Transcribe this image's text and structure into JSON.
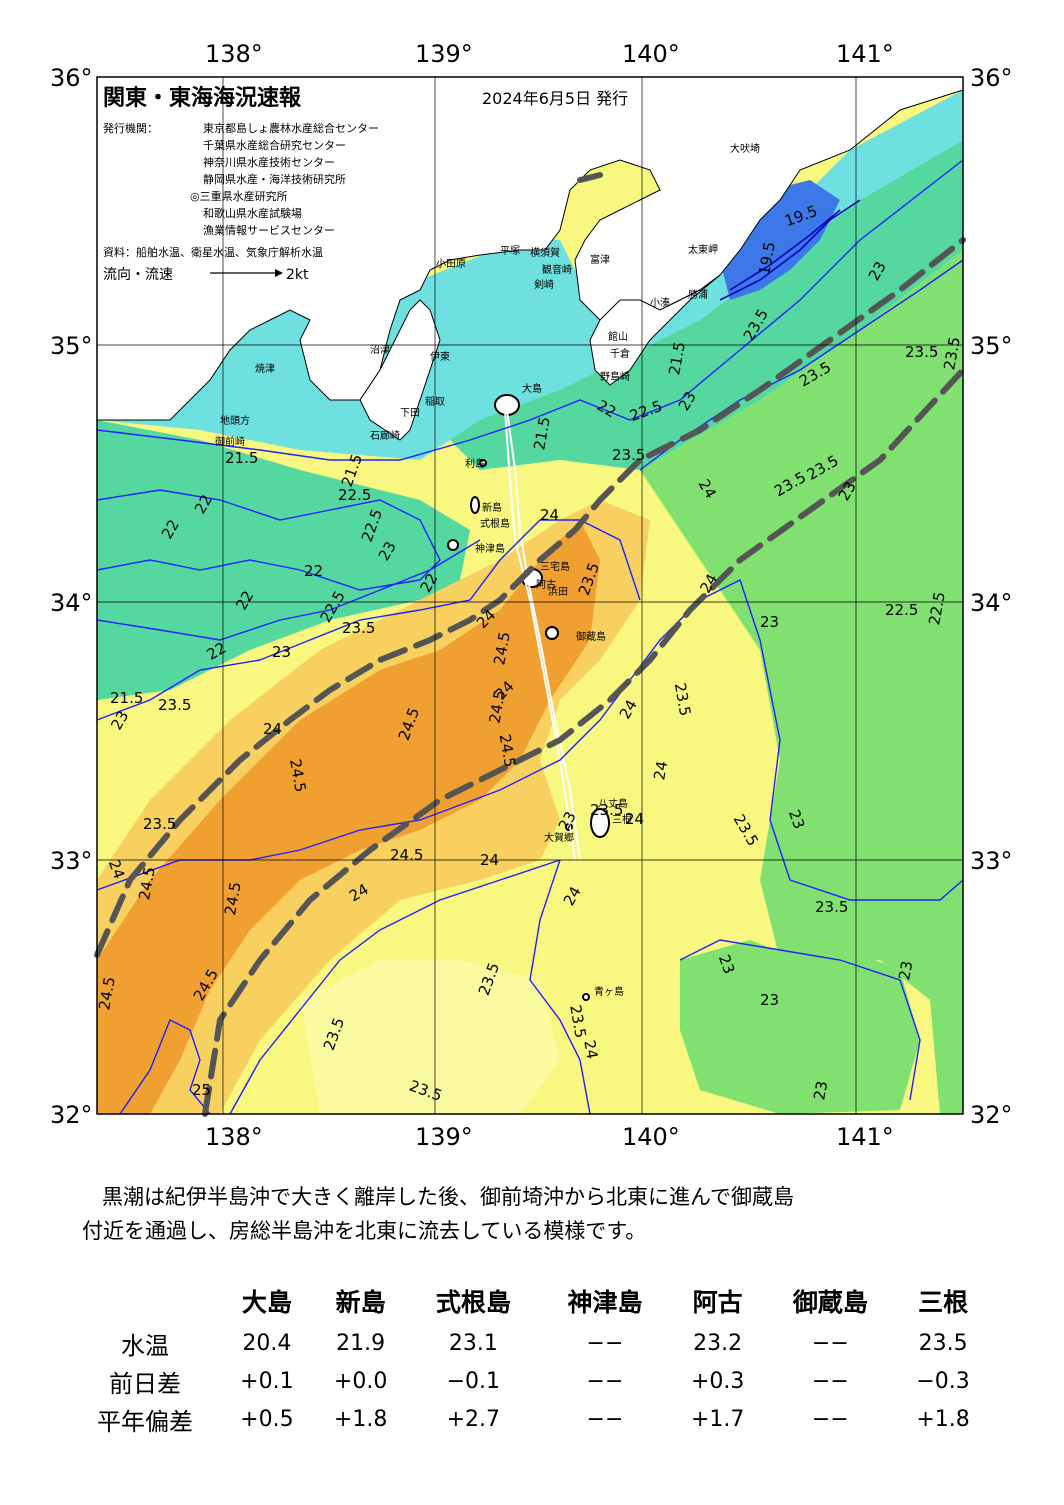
{
  "header": {
    "title": "関東・東海海況速報",
    "date": "2024年6月5日 発行",
    "issuer_label": "発行機関：",
    "issuers": [
      "東京都島しょ農林水産総合センター",
      "千葉県水産総合研究センター",
      "神奈川県水産技術センター",
      "静岡県水産・海洋技術研究所",
      "◎三重県水産研究所",
      "和歌山県水産試験場",
      "漁業情報サービスセンター"
    ],
    "source": "資料：船舶水温、衛星水温、気象庁解析水温",
    "flow_legend_label": "流向・流速",
    "flow_legend_value": "2kt"
  },
  "map": {
    "lon_labels": [
      "138°",
      "139°",
      "140°",
      "141°"
    ],
    "lat_labels": [
      "36°",
      "35°",
      "34°",
      "33°",
      "32°"
    ],
    "colors": {
      "water_19": "#3c78e8",
      "water_21": "#6fe0e0",
      "water_22": "#55d8a0",
      "water_23": "#80e070",
      "water_235": "#f8f880",
      "water_24": "#f8d060",
      "water_245": "#f0a030",
      "land": "#ffffff",
      "contour": "#2020ff",
      "kuroshio_axis": "#555555"
    },
    "contour_labels": [
      "21.5",
      "21.5",
      "22",
      "22",
      "22.5",
      "22.5",
      "22",
      "22.5",
      "22",
      "22",
      "22",
      "23",
      "21.5",
      "23",
      "23.5",
      "23.5",
      "23.5",
      "24",
      "24.5",
      "24.5",
      "24",
      "24.5",
      "24.5",
      "24",
      "24.5",
      "24",
      "24.5",
      "24",
      "24",
      "24.5",
      "24",
      "24.5",
      "23.5",
      "23.5",
      "23.5",
      "23.5",
      "23.5",
      "23.5",
      "23",
      "23",
      "23",
      "23",
      "23",
      "22.5",
      "22.5",
      "23",
      "23",
      "23",
      "23.5",
      "23.5",
      "23.5",
      "23.5",
      "24",
      "24",
      "24",
      "23.5",
      "24",
      "24",
      "21.5",
      "22",
      "22.5",
      "23",
      "23.5",
      "23.5",
      "23.5",
      "19.5",
      "19.5",
      "21.5",
      "23",
      "23",
      "23.5",
      "24.5",
      "24.5",
      "25",
      "24",
      "24",
      "23.5"
    ],
    "places": [
      "大吠埼",
      "太東岬",
      "勝浦",
      "小湊",
      "館山",
      "千倉",
      "野島崎",
      "富津",
      "観音崎",
      "剣崎",
      "横須賀",
      "平塚",
      "小田原",
      "沼津",
      "伊東",
      "稲取",
      "下田",
      "石廊崎",
      "御前崎",
      "焼津",
      "地頭方",
      "大島",
      "利島",
      "新島",
      "式根島",
      "神津島",
      "三宅島",
      "御蔵島",
      "八丈島",
      "三根",
      "大賀郷",
      "青ヶ島",
      "浜田",
      "阿古"
    ]
  },
  "summary": {
    "line1": "黒潮は紀伊半島沖で大きく離岸した後、御前埼沖から北東に進んで御蔵島",
    "line2": "付近を通過し、房総半島沖を北東に流去している模様です。"
  },
  "table": {
    "stations": [
      "大島",
      "新島",
      "式根島",
      "神津島",
      "阿古",
      "御蔵島",
      "三根"
    ],
    "rows": [
      {
        "label": "水温",
        "values": [
          "20.4",
          "21.9",
          "23.1",
          "−−",
          "23.2",
          "−−",
          "23.5"
        ]
      },
      {
        "label": "前日差",
        "values": [
          "+0.1",
          "+0.0",
          "−0.1",
          "−−",
          "+0.3",
          "−−",
          "−0.3"
        ]
      },
      {
        "label": "平年偏差",
        "values": [
          "+0.5",
          "+1.8",
          "+2.7",
          "−−",
          "+1.7",
          "−−",
          "+1.8"
        ]
      }
    ]
  }
}
